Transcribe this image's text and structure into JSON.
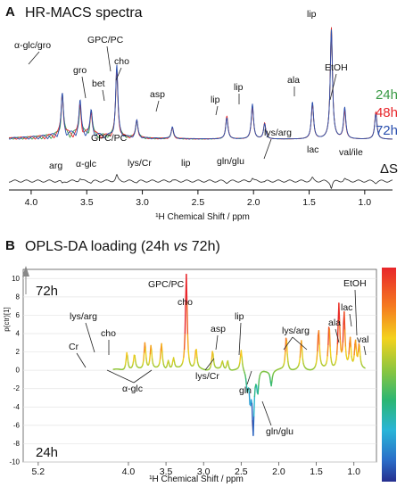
{
  "figure": {
    "panel_a_letter": "A",
    "panel_b_letter": "B"
  },
  "chart_data": [
    {
      "type": "line",
      "title": "HR-MACS spectra",
      "xlabel": "¹H Chemical Shift / ppm",
      "x_reversed": true,
      "xlim": [
        4.2,
        0.75
      ],
      "x_ticks": [
        "4.0",
        "3.5",
        "3.0",
        "2.5",
        "2.0",
        "1.5",
        "1.0"
      ],
      "series": [
        {
          "name": "24h",
          "color": "#3a9a45"
        },
        {
          "name": "48h",
          "color": "#e8262b"
        },
        {
          "name": "72h",
          "color": "#2a4fae"
        }
      ],
      "difference_label": "ΔS",
      "peaks": [
        {
          "ppm": 3.72,
          "rel": 0.38
        },
        {
          "ppm": 3.56,
          "rel": 0.28
        },
        {
          "ppm": 3.46,
          "rel": 0.22
        },
        {
          "ppm": 3.23,
          "rel": 0.62
        },
        {
          "ppm": 3.05,
          "rel": 0.16
        },
        {
          "ppm": 2.73,
          "rel": 0.1
        },
        {
          "ppm": 2.24,
          "rel": 0.2
        },
        {
          "ppm": 2.01,
          "rel": 0.3
        },
        {
          "ppm": 1.9,
          "rel": 0.14
        },
        {
          "ppm": 1.47,
          "rel": 0.32
        },
        {
          "ppm": 1.3,
          "rel": 1.0
        },
        {
          "ppm": 1.18,
          "rel": 0.26
        },
        {
          "ppm": 0.9,
          "rel": 0.24
        }
      ],
      "annotations": [
        {
          "label": "α-glc/gro"
        },
        {
          "label": "gro"
        },
        {
          "label": "GPC/PC"
        },
        {
          "label": "bet"
        },
        {
          "label": "cho"
        },
        {
          "label": "asp"
        },
        {
          "label": "lip"
        },
        {
          "label": "lip"
        },
        {
          "label": "ala"
        },
        {
          "label": "lip"
        },
        {
          "label": "EtOH"
        },
        {
          "label": "arg"
        },
        {
          "label": "α-glc"
        },
        {
          "label": "GPC/PC"
        },
        {
          "label": "lys/Cr"
        },
        {
          "label": "lip"
        },
        {
          "label": "gln/glu"
        },
        {
          "label": "lys/arg"
        },
        {
          "label": "lac"
        },
        {
          "label": "val/ile"
        }
      ]
    },
    {
      "type": "line",
      "title_prefix": "OPLS-DA loading (24h ",
      "title_italic": "vs",
      "title_suffix": " 72h)",
      "xlabel": "¹H Chemical Shift / ppm",
      "ylabel": "p(ctr)[1]",
      "x_reversed": true,
      "xlim": [
        5.4,
        0.7
      ],
      "ylim": [
        -10,
        11
      ],
      "x_ticks": [
        "5.2",
        "4.0",
        "3.5",
        "3.0",
        "2.5",
        "2.0",
        "1.5",
        "1.0"
      ],
      "y_ticks": [
        10,
        8,
        6,
        4,
        2,
        0,
        -2,
        -4,
        -6,
        -8,
        -10
      ],
      "group_top": "72h",
      "group_bottom": "24h",
      "colorbar": true,
      "loadings": [
        {
          "ppm": 4.02,
          "value": 2.0
        },
        {
          "ppm": 3.92,
          "value": 1.6
        },
        {
          "ppm": 3.78,
          "value": 3.0
        },
        {
          "ppm": 3.7,
          "value": 2.6
        },
        {
          "ppm": 3.56,
          "value": 2.8
        },
        {
          "ppm": 3.47,
          "value": 1.0
        },
        {
          "ppm": 3.4,
          "value": 1.2
        },
        {
          "ppm": 3.23,
          "value": 10.5
        },
        {
          "ppm": 3.1,
          "value": 2.2
        },
        {
          "ppm": 2.88,
          "value": 2.1
        },
        {
          "ppm": 2.75,
          "value": 0.9
        },
        {
          "ppm": 2.68,
          "value": 1.1
        },
        {
          "ppm": 2.5,
          "value": 2.2
        },
        {
          "ppm": 2.42,
          "value": -1.8
        },
        {
          "ppm": 2.38,
          "value": -3.0
        },
        {
          "ppm": 2.34,
          "value": -6.6
        },
        {
          "ppm": 2.28,
          "value": -2.4
        },
        {
          "ppm": 2.1,
          "value": -1.6
        },
        {
          "ppm": 1.9,
          "value": 3.7
        },
        {
          "ppm": 1.7,
          "value": 3.1
        },
        {
          "ppm": 1.47,
          "value": 4.3
        },
        {
          "ppm": 1.33,
          "value": 4.9
        },
        {
          "ppm": 1.2,
          "value": 6.9
        },
        {
          "ppm": 1.13,
          "value": 5.9
        },
        {
          "ppm": 1.05,
          "value": 3.3
        },
        {
          "ppm": 0.98,
          "value": 3.0
        },
        {
          "ppm": 0.93,
          "value": 2.6
        }
      ],
      "annotations": [
        {
          "label": "GPC/PC"
        },
        {
          "label": "cho"
        },
        {
          "label": "lys/arg"
        },
        {
          "label": "cho"
        },
        {
          "label": "Cr"
        },
        {
          "label": "α-glc"
        },
        {
          "label": "asp"
        },
        {
          "label": "lip"
        },
        {
          "label": "lys/Cr"
        },
        {
          "label": "gln"
        },
        {
          "label": "gln/glu"
        },
        {
          "label": "lys/arg"
        },
        {
          "label": "ala"
        },
        {
          "label": "lac"
        },
        {
          "label": "EtOH"
        },
        {
          "label": "val"
        }
      ]
    }
  ]
}
